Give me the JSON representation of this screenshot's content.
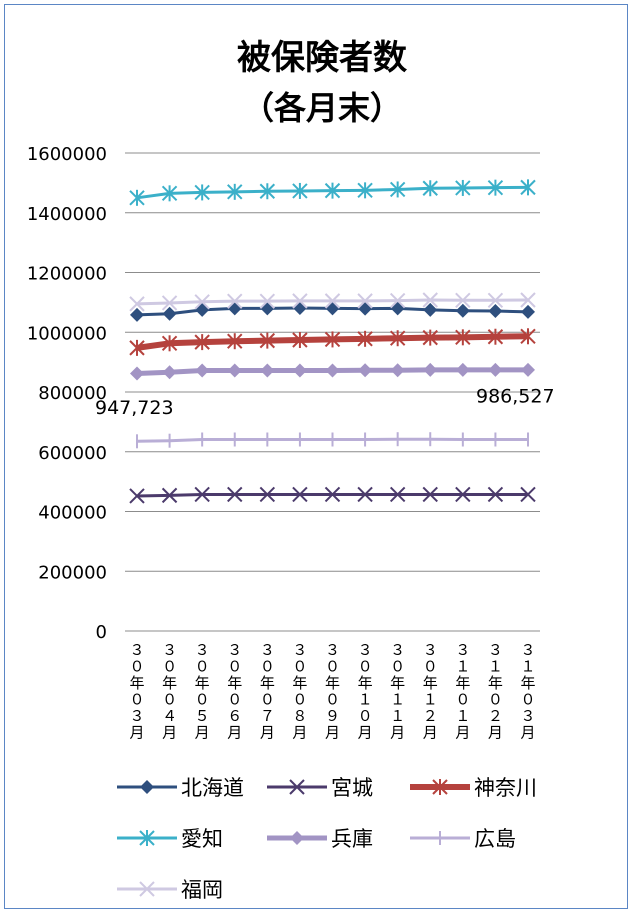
{
  "chart_data": {
    "type": "line",
    "title": "被保険者数",
    "subtitle": "（各月末）",
    "categories": [
      "３０年０３月",
      "３０年０４月",
      "３０年０５月",
      "３０年０６月",
      "３０年０７月",
      "３０年０８月",
      "３０年０９月",
      "３０年１０月",
      "３０年１１月",
      "３０年１２月",
      "３１年０１月",
      "３１年０２月",
      "３１年０３月"
    ],
    "ylim": [
      0,
      1600000
    ],
    "yticks": [
      "0",
      "200000",
      "400000",
      "600000",
      "800000",
      "1000000",
      "1200000",
      "1400000",
      "1600000"
    ],
    "ytick_values": [
      0,
      200000,
      400000,
      600000,
      800000,
      1000000,
      1200000,
      1400000,
      1600000
    ],
    "grid": true,
    "legend_position": "bottom",
    "annotations": [
      {
        "text": "947,723",
        "series": "神奈川",
        "point": "first"
      },
      {
        "text": "986,527",
        "series": "神奈川",
        "point": "last"
      }
    ],
    "series": [
      {
        "name": "北海道",
        "color": "#2e4f7e",
        "marker": "diamond",
        "width": 3,
        "values": [
          1058000,
          1062000,
          1075000,
          1080000,
          1080000,
          1081000,
          1080000,
          1079000,
          1080000,
          1075000,
          1072000,
          1071000,
          1068000
        ]
      },
      {
        "name": "宮城",
        "color": "#4b3a6b",
        "marker": "x",
        "width": 3,
        "values": [
          452000,
          454000,
          457000,
          457000,
          457000,
          457000,
          457000,
          457000,
          457000,
          457000,
          457000,
          457000,
          457000
        ]
      },
      {
        "name": "神奈川",
        "color": "#b5423d",
        "marker": "star",
        "width": 6,
        "values": [
          947723,
          963000,
          967000,
          970000,
          972000,
          974000,
          976000,
          978000,
          980000,
          982000,
          983000,
          985000,
          986527
        ]
      },
      {
        "name": "愛知",
        "color": "#3bb0c9",
        "marker": "star",
        "width": 3,
        "values": [
          1450000,
          1465000,
          1468000,
          1470000,
          1472000,
          1473000,
          1474000,
          1475000,
          1478000,
          1482000,
          1483000,
          1484000,
          1485000
        ]
      },
      {
        "name": "兵庫",
        "color": "#a294c4",
        "marker": "diamond",
        "width": 5,
        "values": [
          862000,
          866000,
          872000,
          872000,
          872000,
          872000,
          872000,
          873000,
          873000,
          874000,
          874000,
          874000,
          874000
        ]
      },
      {
        "name": "広島",
        "color": "#b9aed6",
        "marker": "plus",
        "width": 3,
        "values": [
          635000,
          637000,
          641000,
          641000,
          641000,
          641000,
          641000,
          641000,
          642000,
          642000,
          641000,
          641000,
          641000
        ]
      },
      {
        "name": "福岡",
        "color": "#cfc9e2",
        "marker": "x",
        "width": 3,
        "values": [
          1095000,
          1098000,
          1102000,
          1104000,
          1104000,
          1105000,
          1105000,
          1105000,
          1106000,
          1108000,
          1107000,
          1107000,
          1108000
        ]
      }
    ]
  }
}
